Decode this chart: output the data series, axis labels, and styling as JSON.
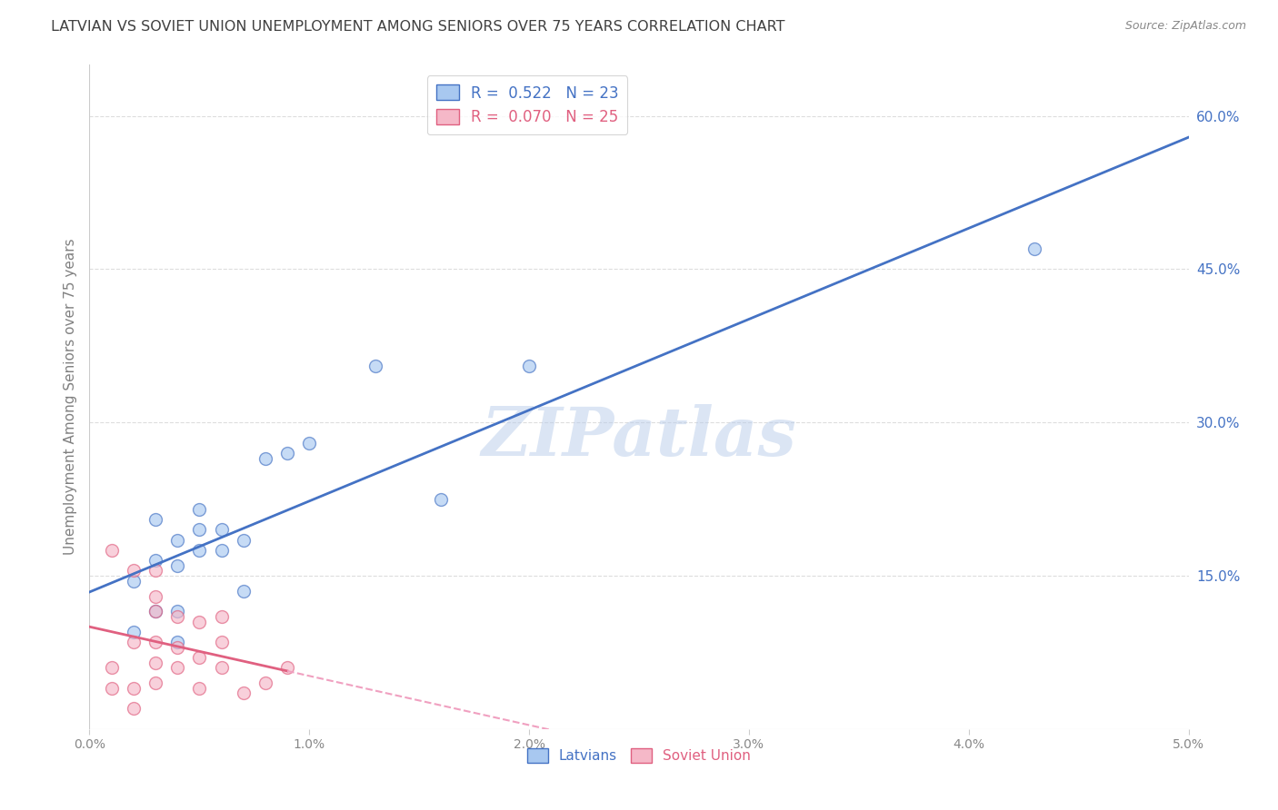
{
  "title": "LATVIAN VS SOVIET UNION UNEMPLOYMENT AMONG SENIORS OVER 75 YEARS CORRELATION CHART",
  "source": "Source: ZipAtlas.com",
  "ylabel": "Unemployment Among Seniors over 75 years",
  "xmin": 0.0,
  "xmax": 0.05,
  "ymin": 0.0,
  "ymax": 0.65,
  "yticks": [
    0.15,
    0.3,
    0.45,
    0.6
  ],
  "xticks": [
    0.0,
    0.01,
    0.02,
    0.03,
    0.04,
    0.05
  ],
  "blue_R": 0.522,
  "blue_N": 23,
  "pink_R": 0.07,
  "pink_N": 25,
  "blue_color": "#A8C8F0",
  "pink_color": "#F5B8C8",
  "blue_line_color": "#4472C4",
  "pink_line_color": "#E06080",
  "pink_dash_color": "#F0A0C0",
  "background_color": "#FFFFFF",
  "grid_color": "#DDDDDD",
  "title_color": "#404040",
  "axis_label_color": "#808080",
  "watermark": "ZIPatlas",
  "legend_latvians": "Latvians",
  "legend_soviet": "Soviet Union",
  "dot_size": 100,
  "latvians_x": [
    0.002,
    0.002,
    0.003,
    0.003,
    0.003,
    0.004,
    0.004,
    0.004,
    0.004,
    0.005,
    0.005,
    0.005,
    0.006,
    0.006,
    0.007,
    0.007,
    0.008,
    0.009,
    0.01,
    0.013,
    0.016,
    0.02,
    0.043
  ],
  "latvians_y": [
    0.095,
    0.145,
    0.115,
    0.165,
    0.205,
    0.085,
    0.115,
    0.16,
    0.185,
    0.175,
    0.195,
    0.215,
    0.175,
    0.195,
    0.135,
    0.185,
    0.265,
    0.27,
    0.28,
    0.355,
    0.225,
    0.355,
    0.47
  ],
  "soviet_x": [
    0.001,
    0.001,
    0.001,
    0.002,
    0.002,
    0.002,
    0.002,
    0.003,
    0.003,
    0.003,
    0.003,
    0.003,
    0.003,
    0.004,
    0.004,
    0.004,
    0.005,
    0.005,
    0.005,
    0.006,
    0.006,
    0.006,
    0.007,
    0.008,
    0.009
  ],
  "soviet_y": [
    0.04,
    0.06,
    0.175,
    0.02,
    0.04,
    0.085,
    0.155,
    0.045,
    0.065,
    0.085,
    0.115,
    0.13,
    0.155,
    0.06,
    0.08,
    0.11,
    0.04,
    0.07,
    0.105,
    0.06,
    0.085,
    0.11,
    0.035,
    0.045,
    0.06
  ]
}
